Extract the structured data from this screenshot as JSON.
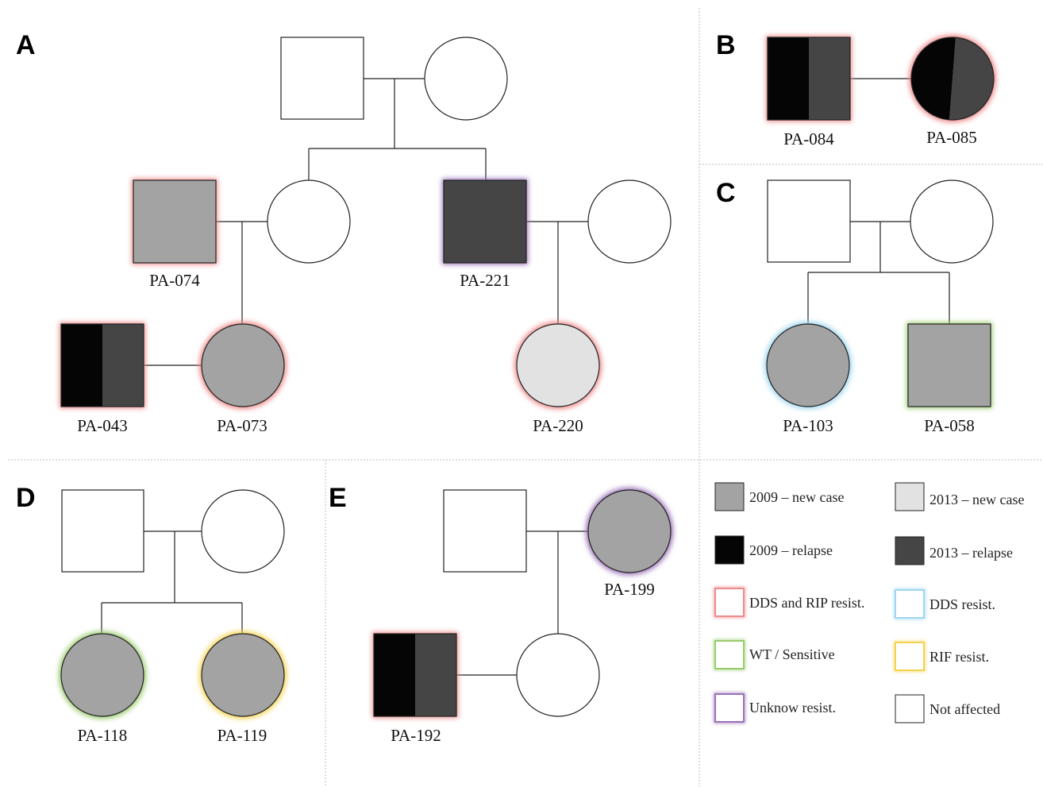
{
  "panels": {
    "A": {
      "letter": "A",
      "individuals": {
        "pa074": {
          "id": "PA-074",
          "fill": "new2009",
          "halo": "dds_rip"
        },
        "pa221": {
          "id": "PA-221",
          "fill": "relapse2013",
          "halo": "unknown"
        },
        "pa043": {
          "id": "PA-043",
          "fill": "split_2009_relapse_2013_relapse",
          "halo": "dds_rip"
        },
        "pa073": {
          "id": "PA-073",
          "fill": "new2009",
          "halo": "dds_rip"
        },
        "pa220": {
          "id": "PA-220",
          "fill": "new2013",
          "halo": "dds_rip"
        }
      }
    },
    "B": {
      "letter": "B",
      "individuals": {
        "pa084": {
          "id": "PA-084",
          "fill": "split_2009_relapse_2013_relapse",
          "halo": "dds_rip"
        },
        "pa085": {
          "id": "PA-085",
          "fill": "split_2009_relapse_2013_relapse",
          "halo": "dds_rip"
        }
      }
    },
    "C": {
      "letter": "C",
      "individuals": {
        "pa103": {
          "id": "PA-103",
          "fill": "new2009",
          "halo": "dds"
        },
        "pa058": {
          "id": "PA-058",
          "fill": "new2009",
          "halo": "wt"
        }
      }
    },
    "D": {
      "letter": "D",
      "individuals": {
        "pa118": {
          "id": "PA-118",
          "fill": "new2009",
          "halo": "wt"
        },
        "pa119": {
          "id": "PA-119",
          "fill": "new2009",
          "halo": "rif"
        }
      }
    },
    "E": {
      "letter": "E",
      "individuals": {
        "pa199": {
          "id": "PA-199",
          "fill": "new2009",
          "halo": "unknown"
        },
        "pa192": {
          "id": "PA-192",
          "fill": "split_2009_relapse_2013_relapse",
          "halo": "dds_rip"
        }
      }
    }
  },
  "legend": {
    "new2009": {
      "label": "2009 – new case",
      "color": "#a3a3a3"
    },
    "new2013": {
      "label": "2013 – new case",
      "color": "#e2e2e2"
    },
    "relapse2009": {
      "label": "2009 – relapse",
      "color": "#050505"
    },
    "relapse2013": {
      "label": "2013 – relapse",
      "color": "#454545"
    },
    "dds_rip": {
      "label": "DDS and RIP resist.",
      "color": "#ee8a8a"
    },
    "dds": {
      "label": "DDS resist.",
      "color": "#9fd6ee"
    },
    "wt": {
      "label": "WT / Sensitive",
      "color": "#98cc6a"
    },
    "rif": {
      "label": "RIF resist.",
      "color": "#f5d34e"
    },
    "unknown": {
      "label": "Unknow resist.",
      "color": "#9a72b8"
    },
    "not_affected": {
      "label": "Not affected",
      "color": "#ffffff"
    }
  }
}
